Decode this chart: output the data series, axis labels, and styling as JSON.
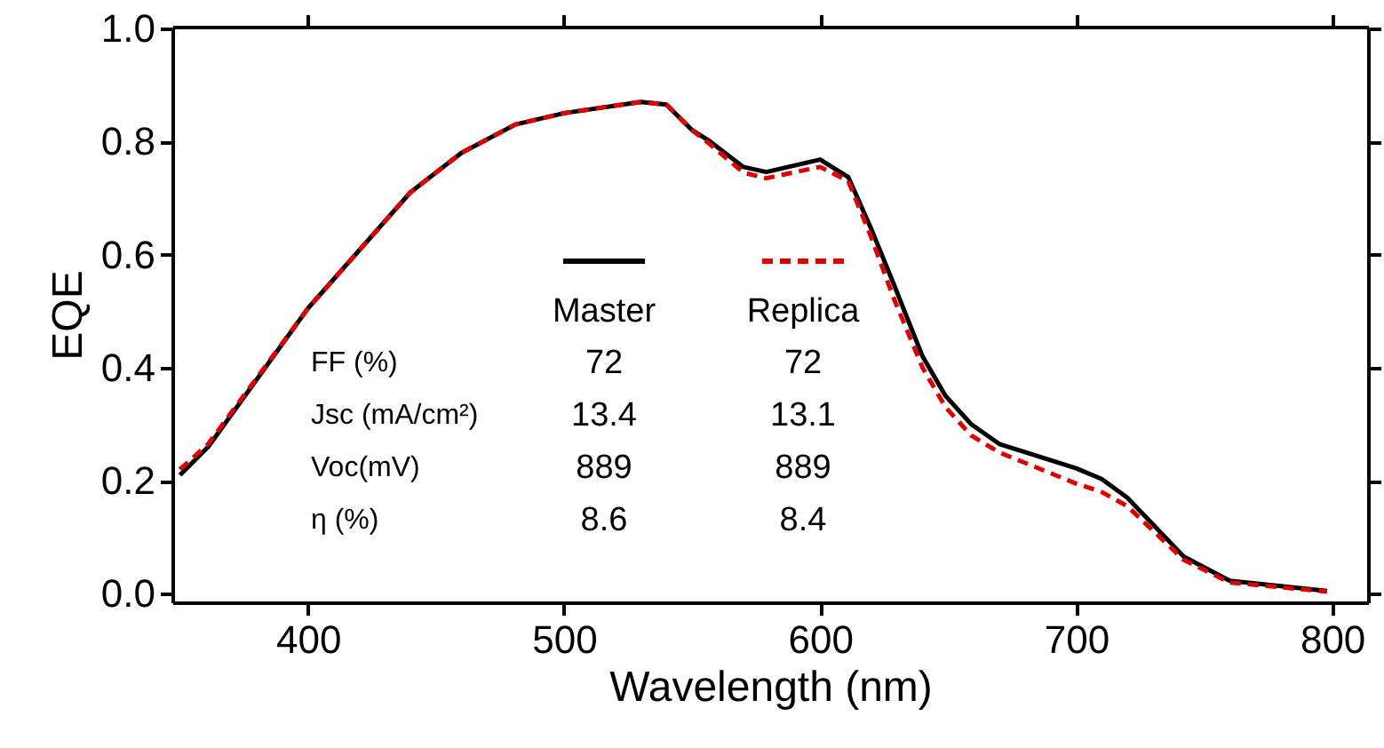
{
  "chart_data": {
    "type": "line",
    "xlabel": "Wavelength (nm)",
    "ylabel": "EQE",
    "xlim": [
      347,
      814
    ],
    "ylim": [
      -0.015,
      1.003
    ],
    "xticks": [
      400,
      500,
      600,
      700,
      800
    ],
    "yticks": [
      {
        "value": 0,
        "label": "0.0"
      },
      {
        "value": 0.2,
        "label": "0.2"
      },
      {
        "value": 0.4,
        "label": "0.4"
      },
      {
        "value": 0.6,
        "label": "0.6"
      },
      {
        "value": 0.8,
        "label": "0.8"
      },
      {
        "value": 1,
        "label": "1.0"
      }
    ],
    "grid": false,
    "legend": "center",
    "marker": "none",
    "x": [
      350,
      361,
      400,
      440,
      460,
      481,
      500,
      530,
      540,
      550,
      557,
      570,
      579,
      600,
      611,
      620,
      629,
      640,
      649,
      659,
      670,
      700,
      710,
      720,
      742,
      760,
      798
    ],
    "series": [
      {
        "name": "Master",
        "color": "#000000",
        "line_style": "solid",
        "values": [
          0.21,
          0.26,
          0.505,
          0.71,
          0.78,
          0.83,
          0.85,
          0.87,
          0.865,
          0.82,
          0.8,
          0.755,
          0.746,
          0.768,
          0.737,
          0.645,
          0.545,
          0.42,
          0.35,
          0.3,
          0.265,
          0.222,
          0.203,
          0.17,
          0.066,
          0.023,
          0.005
        ]
      },
      {
        "name": "Replica",
        "color": "#dd0000",
        "line_style": "dashed",
        "values": [
          0.22,
          0.265,
          0.505,
          0.71,
          0.78,
          0.83,
          0.85,
          0.87,
          0.865,
          0.82,
          0.795,
          0.745,
          0.735,
          0.755,
          0.73,
          0.63,
          0.52,
          0.4,
          0.33,
          0.28,
          0.25,
          0.195,
          0.18,
          0.155,
          0.06,
          0.02,
          0.004
        ]
      }
    ],
    "annotations": [
      "FF (%)",
      "72",
      "72",
      "Jsc (mA/cm²)",
      "13.4",
      "13.1",
      "Voc(mV)",
      "889",
      "889",
      "η (%)",
      "8.6",
      "8.4"
    ]
  }
}
